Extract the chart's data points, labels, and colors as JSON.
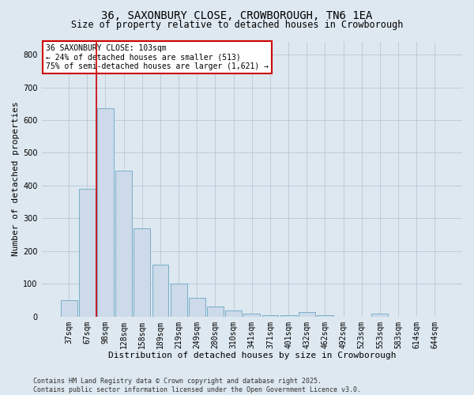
{
  "title_line1": "36, SAXONBURY CLOSE, CROWBOROUGH, TN6 1EA",
  "title_line2": "Size of property relative to detached houses in Crowborough",
  "xlabel": "Distribution of detached houses by size in Crowborough",
  "ylabel": "Number of detached properties",
  "categories": [
    "37sqm",
    "67sqm",
    "98sqm",
    "128sqm",
    "158sqm",
    "189sqm",
    "219sqm",
    "249sqm",
    "280sqm",
    "310sqm",
    "341sqm",
    "371sqm",
    "401sqm",
    "432sqm",
    "462sqm",
    "492sqm",
    "523sqm",
    "553sqm",
    "583sqm",
    "614sqm",
    "644sqm"
  ],
  "values": [
    50,
    390,
    635,
    445,
    270,
    158,
    100,
    57,
    30,
    18,
    8,
    5,
    5,
    13,
    5,
    0,
    0,
    8,
    0,
    0,
    0
  ],
  "bar_color": "#ccdaea",
  "bar_edge_color": "#7aaec8",
  "vline_x": 1.5,
  "vline_color": "#cc0000",
  "annotation_text": "36 SAXONBURY CLOSE: 103sqm\n← 24% of detached houses are smaller (513)\n75% of semi-detached houses are larger (1,621) →",
  "annotation_box_color": "#ffffff",
  "annotation_box_edge_color": "#cc0000",
  "ylim": [
    0,
    840
  ],
  "yticks": [
    0,
    100,
    200,
    300,
    400,
    500,
    600,
    700,
    800
  ],
  "grid_color": "#b8c8d8",
  "background_color": "#dde8f0",
  "footer_line1": "Contains HM Land Registry data © Crown copyright and database right 2025.",
  "footer_line2": "Contains public sector information licensed under the Open Government Licence v3.0.",
  "title_fontsize": 10,
  "subtitle_fontsize": 8.5,
  "axis_label_fontsize": 8,
  "tick_fontsize": 7,
  "annotation_fontsize": 7,
  "footer_fontsize": 6
}
